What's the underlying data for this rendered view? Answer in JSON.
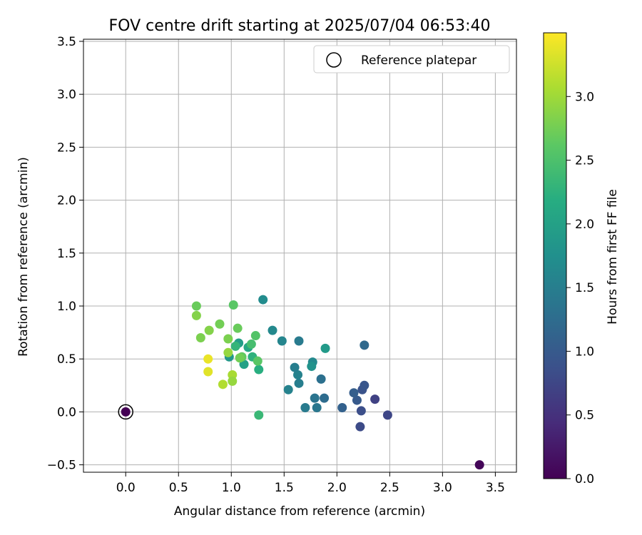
{
  "chart_data": {
    "type": "scatter",
    "title": "FOV centre drift starting at 2025/07/04 06:53:40",
    "xlabel": "Angular distance from reference (arcmin)",
    "ylabel": "Rotation from reference (arcmin)",
    "xlim": [
      -0.4,
      3.7
    ],
    "ylim": [
      -0.57,
      3.52
    ],
    "xticks": [
      "0.0",
      "0.5",
      "1.0",
      "1.5",
      "2.0",
      "2.5",
      "3.0",
      "3.5"
    ],
    "yticks": [
      "−0.5",
      "0.0",
      "0.5",
      "1.0",
      "1.5",
      "2.0",
      "2.5",
      "3.0",
      "3.5"
    ],
    "grid": true,
    "legend": {
      "placement": "top-right",
      "entry": "Reference platepar"
    },
    "colorbar": {
      "label": "Hours from first FF file",
      "range": [
        0.0,
        3.5
      ],
      "ticks": [
        "0.0",
        "0.5",
        "1.0",
        "1.5",
        "2.0",
        "2.5",
        "3.0"
      ],
      "colormap": "viridis"
    },
    "reference_point": {
      "x": 0.0,
      "y": 0.0
    },
    "points": [
      {
        "x": 0.0,
        "y": 0.0,
        "h": 0.0
      },
      {
        "x": 3.35,
        "y": -0.5,
        "h": 0.05
      },
      {
        "x": 2.48,
        "y": -0.03,
        "h": 0.75
      },
      {
        "x": 2.36,
        "y": 0.12,
        "h": 0.7
      },
      {
        "x": 2.22,
        "y": -0.14,
        "h": 0.8
      },
      {
        "x": 2.23,
        "y": 0.01,
        "h": 0.85
      },
      {
        "x": 2.24,
        "y": 0.21,
        "h": 0.9
      },
      {
        "x": 2.26,
        "y": 0.25,
        "h": 0.95
      },
      {
        "x": 2.19,
        "y": 0.11,
        "h": 1.0
      },
      {
        "x": 2.16,
        "y": 0.18,
        "h": 1.05
      },
      {
        "x": 2.05,
        "y": 0.04,
        "h": 1.1
      },
      {
        "x": 2.26,
        "y": 0.63,
        "h": 1.2
      },
      {
        "x": 1.88,
        "y": 0.13,
        "h": 1.25
      },
      {
        "x": 1.85,
        "y": 0.31,
        "h": 1.3
      },
      {
        "x": 1.79,
        "y": 0.13,
        "h": 1.35
      },
      {
        "x": 1.81,
        "y": 0.04,
        "h": 1.4
      },
      {
        "x": 1.7,
        "y": 0.04,
        "h": 1.45
      },
      {
        "x": 1.64,
        "y": 0.27,
        "h": 1.5
      },
      {
        "x": 1.63,
        "y": 0.35,
        "h": 1.55
      },
      {
        "x": 1.6,
        "y": 0.42,
        "h": 1.5
      },
      {
        "x": 1.54,
        "y": 0.21,
        "h": 1.55
      },
      {
        "x": 1.64,
        "y": 0.67,
        "h": 1.45
      },
      {
        "x": 1.48,
        "y": 0.67,
        "h": 1.6
      },
      {
        "x": 1.39,
        "y": 0.77,
        "h": 1.65
      },
      {
        "x": 1.3,
        "y": 1.06,
        "h": 1.7
      },
      {
        "x": 1.77,
        "y": 0.47,
        "h": 1.65
      },
      {
        "x": 1.76,
        "y": 0.43,
        "h": 1.8
      },
      {
        "x": 1.89,
        "y": 0.6,
        "h": 1.9
      },
      {
        "x": 1.26,
        "y": 0.4,
        "h": 2.2
      },
      {
        "x": 1.26,
        "y": -0.03,
        "h": 2.35
      },
      {
        "x": 0.98,
        "y": 0.52,
        "h": 1.85
      },
      {
        "x": 1.07,
        "y": 0.65,
        "h": 1.95
      },
      {
        "x": 1.12,
        "y": 0.45,
        "h": 2.0
      },
      {
        "x": 1.16,
        "y": 0.61,
        "h": 2.1
      },
      {
        "x": 1.2,
        "y": 0.52,
        "h": 2.25
      },
      {
        "x": 1.04,
        "y": 0.62,
        "h": 2.3
      },
      {
        "x": 1.19,
        "y": 0.64,
        "h": 2.45
      },
      {
        "x": 1.23,
        "y": 0.72,
        "h": 2.55
      },
      {
        "x": 1.25,
        "y": 0.48,
        "h": 2.6
      },
      {
        "x": 1.1,
        "y": 0.52,
        "h": 2.65
      },
      {
        "x": 1.08,
        "y": 0.51,
        "h": 2.75
      },
      {
        "x": 1.02,
        "y": 1.01,
        "h": 2.6
      },
      {
        "x": 1.06,
        "y": 0.79,
        "h": 2.7
      },
      {
        "x": 0.97,
        "y": 0.69,
        "h": 2.8
      },
      {
        "x": 0.89,
        "y": 0.83,
        "h": 2.75
      },
      {
        "x": 0.79,
        "y": 0.77,
        "h": 2.85
      },
      {
        "x": 0.71,
        "y": 0.7,
        "h": 2.8
      },
      {
        "x": 0.67,
        "y": 1.0,
        "h": 2.7
      },
      {
        "x": 0.67,
        "y": 0.91,
        "h": 2.85
      },
      {
        "x": 0.97,
        "y": 0.56,
        "h": 2.95
      },
      {
        "x": 1.01,
        "y": 0.35,
        "h": 3.05
      },
      {
        "x": 1.01,
        "y": 0.29,
        "h": 2.95
      },
      {
        "x": 0.92,
        "y": 0.26,
        "h": 3.1
      },
      {
        "x": 0.78,
        "y": 0.5,
        "h": 3.4
      },
      {
        "x": 0.78,
        "y": 0.38,
        "h": 3.35
      }
    ]
  }
}
